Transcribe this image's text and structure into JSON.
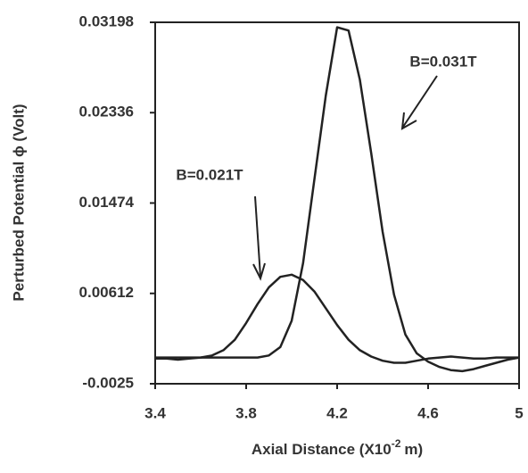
{
  "chart_data": {
    "type": "line",
    "xlabel": [
      "Axial Distance (X10",
      "-2",
      "m)"
    ],
    "ylabel": "Perturbed Potential ϕ  (Volt)",
    "x": [
      3.4,
      3.45,
      3.5,
      3.55,
      3.6,
      3.65,
      3.7,
      3.75,
      3.8,
      3.85,
      3.9,
      3.95,
      4.0,
      4.05,
      4.1,
      4.15,
      4.2,
      4.25,
      4.3,
      4.35,
      4.4,
      4.45,
      4.5,
      4.55,
      4.6,
      4.65,
      4.7,
      4.75,
      4.8,
      4.85,
      4.9,
      4.95,
      5.0
    ],
    "series": [
      {
        "name": "B=0.021T",
        "color": "#222222",
        "values": [
          -0.0001,
          -0.0001,
          -0.0002,
          -0.0001,
          0,
          0.0002,
          0.0007,
          0.0017,
          0.0033,
          0.0051,
          0.0067,
          0.0077,
          0.0079,
          0.0074,
          0.0063,
          0.0047,
          0.0031,
          0.0017,
          0.0007,
          0.0001,
          -0.0003,
          -0.0005,
          -0.0005,
          -0.0003,
          -0.0001,
          0,
          0.0001,
          0,
          -0.0001,
          -0.0001,
          0,
          0,
          0
        ]
      },
      {
        "name": "B=0.031T",
        "color": "#222222",
        "values": [
          0,
          0,
          0,
          0,
          0,
          0,
          0,
          0,
          0,
          0,
          0.0002,
          0.001,
          0.0035,
          0.009,
          0.017,
          0.025,
          0.0315,
          0.0312,
          0.0265,
          0.0195,
          0.012,
          0.006,
          0.0022,
          0.0004,
          -0.0004,
          -0.0009,
          -0.0012,
          -0.0013,
          -0.0011,
          -0.0008,
          -0.0005,
          -0.0002,
          0
        ]
      }
    ],
    "xlim": [
      3.4,
      5
    ],
    "xticks": [
      3.4,
      3.8,
      4.2,
      4.6,
      5
    ],
    "ylim": [
      -0.0025,
      0.03198
    ],
    "yticks": [
      -0.0025,
      0.00612,
      0.01474,
      0.02336,
      0.03198
    ]
  }
}
